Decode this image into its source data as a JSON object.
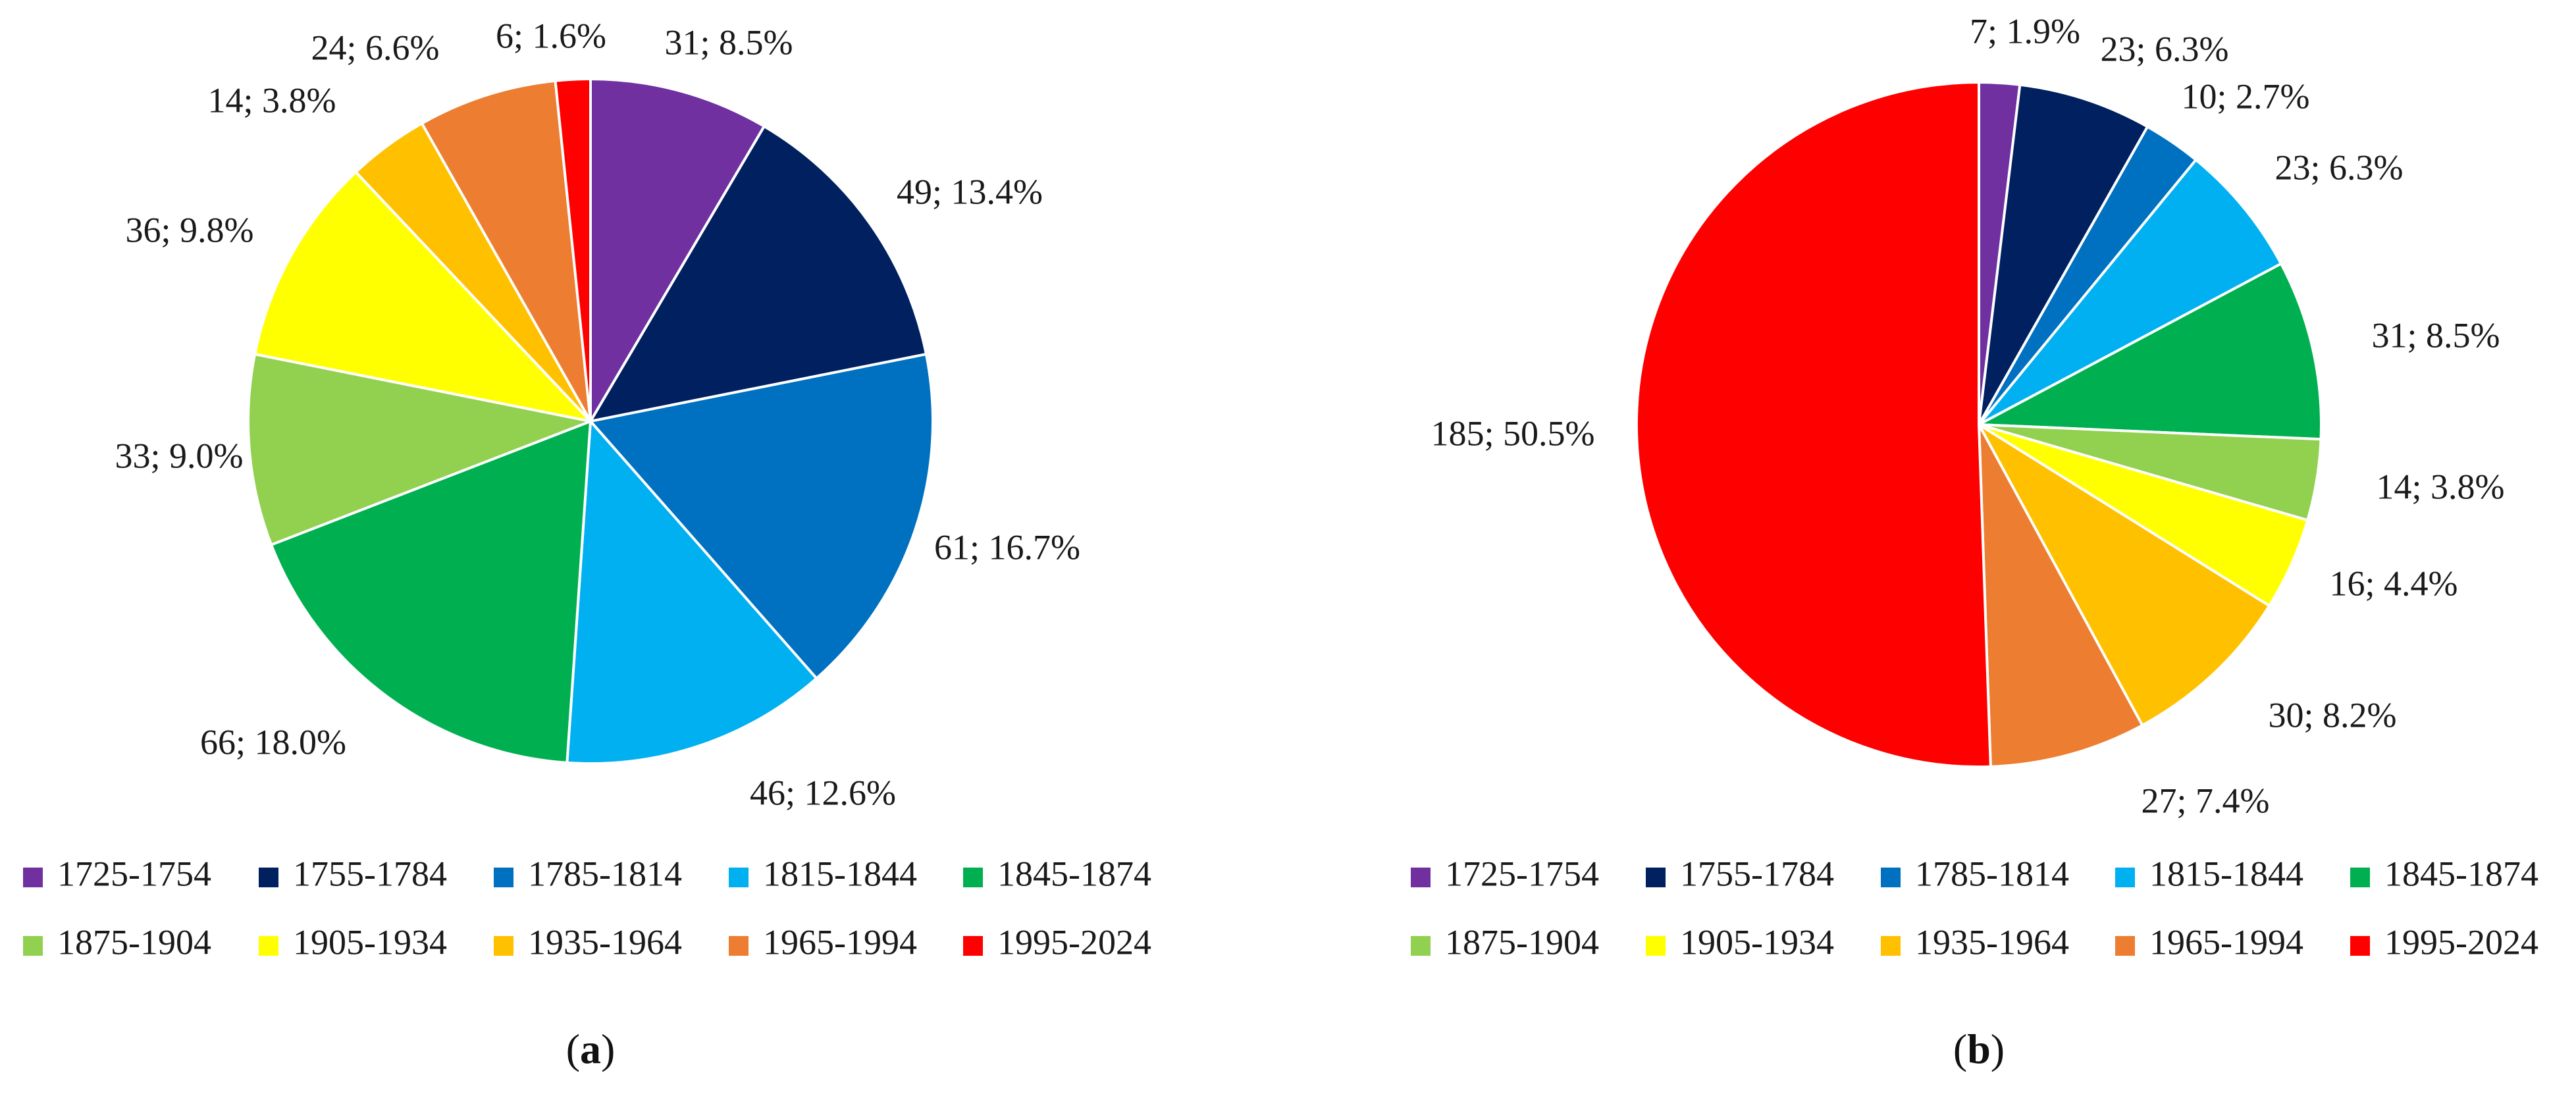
{
  "colors": {
    "1725-1754": "#7030A0",
    "1755-1784": "#002060",
    "1785-1814": "#0070C0",
    "1815-1844": "#00B0F0",
    "1845-1874": "#00B050",
    "1875-1904": "#92D050",
    "1905-1934": "#FFFF00",
    "1935-1964": "#FFC000",
    "1965-1994": "#ED7D31",
    "1995-2024": "#FF0000"
  },
  "chart_data": [
    {
      "type": "pie",
      "panel_label": "(a)",
      "legend_position": "bottom",
      "legend": [
        "1725-1754",
        "1755-1784",
        "1785-1814",
        "1815-1844",
        "1845-1874",
        "1875-1904",
        "1905-1934",
        "1935-1964",
        "1965-1994",
        "1995-2024"
      ],
      "slices": [
        {
          "category": "1725-1754",
          "value": 31,
          "percent": 8.5,
          "label": "31; 8.5%"
        },
        {
          "category": "1755-1784",
          "value": 49,
          "percent": 13.4,
          "label": "49; 13.4%"
        },
        {
          "category": "1785-1814",
          "value": 61,
          "percent": 16.7,
          "label": "61; 16.7%"
        },
        {
          "category": "1815-1844",
          "value": 46,
          "percent": 12.6,
          "label": "46; 12.6%"
        },
        {
          "category": "1845-1874",
          "value": 66,
          "percent": 18.0,
          "label": "66; 18.0%"
        },
        {
          "category": "1875-1904",
          "value": 33,
          "percent": 9.0,
          "label": "33; 9.0%"
        },
        {
          "category": "1905-1934",
          "value": 36,
          "percent": 9.8,
          "label": "36; 9.8%"
        },
        {
          "category": "1935-1964",
          "value": 14,
          "percent": 3.8,
          "label": "14; 3.8%"
        },
        {
          "category": "1965-1994",
          "value": 24,
          "percent": 6.6,
          "label": "24; 6.6%"
        },
        {
          "category": "1995-2024",
          "value": 6,
          "percent": 1.6,
          "label": "6; 1.6%"
        }
      ]
    },
    {
      "type": "pie",
      "panel_label": "(b)",
      "legend_position": "bottom",
      "legend": [
        "1725-1754",
        "1755-1784",
        "1785-1814",
        "1815-1844",
        "1845-1874",
        "1875-1904",
        "1905-1934",
        "1935-1964",
        "1965-1994",
        "1995-2024"
      ],
      "slices": [
        {
          "category": "1725-1754",
          "value": 7,
          "percent": 1.9,
          "label": "7; 1.9%"
        },
        {
          "category": "1755-1784",
          "value": 23,
          "percent": 6.3,
          "label": "23; 6.3%"
        },
        {
          "category": "1785-1814",
          "value": 10,
          "percent": 2.7,
          "label": "10; 2.7%"
        },
        {
          "category": "1815-1844",
          "value": 23,
          "percent": 6.3,
          "label": "23; 6.3%"
        },
        {
          "category": "1845-1874",
          "value": 31,
          "percent": 8.5,
          "label": "31; 8.5%"
        },
        {
          "category": "1875-1904",
          "value": 14,
          "percent": 3.8,
          "label": "14; 3.8%"
        },
        {
          "category": "1905-1934",
          "value": 16,
          "percent": 4.4,
          "label": "16; 4.4%"
        },
        {
          "category": "1935-1964",
          "value": 30,
          "percent": 8.2,
          "label": "30; 8.2%"
        },
        {
          "category": "1965-1994",
          "value": 27,
          "percent": 7.4,
          "label": "27; 7.4%"
        },
        {
          "category": "1995-2024",
          "value": 185,
          "percent": 50.5,
          "label": "185; 50.5%"
        }
      ]
    }
  ]
}
